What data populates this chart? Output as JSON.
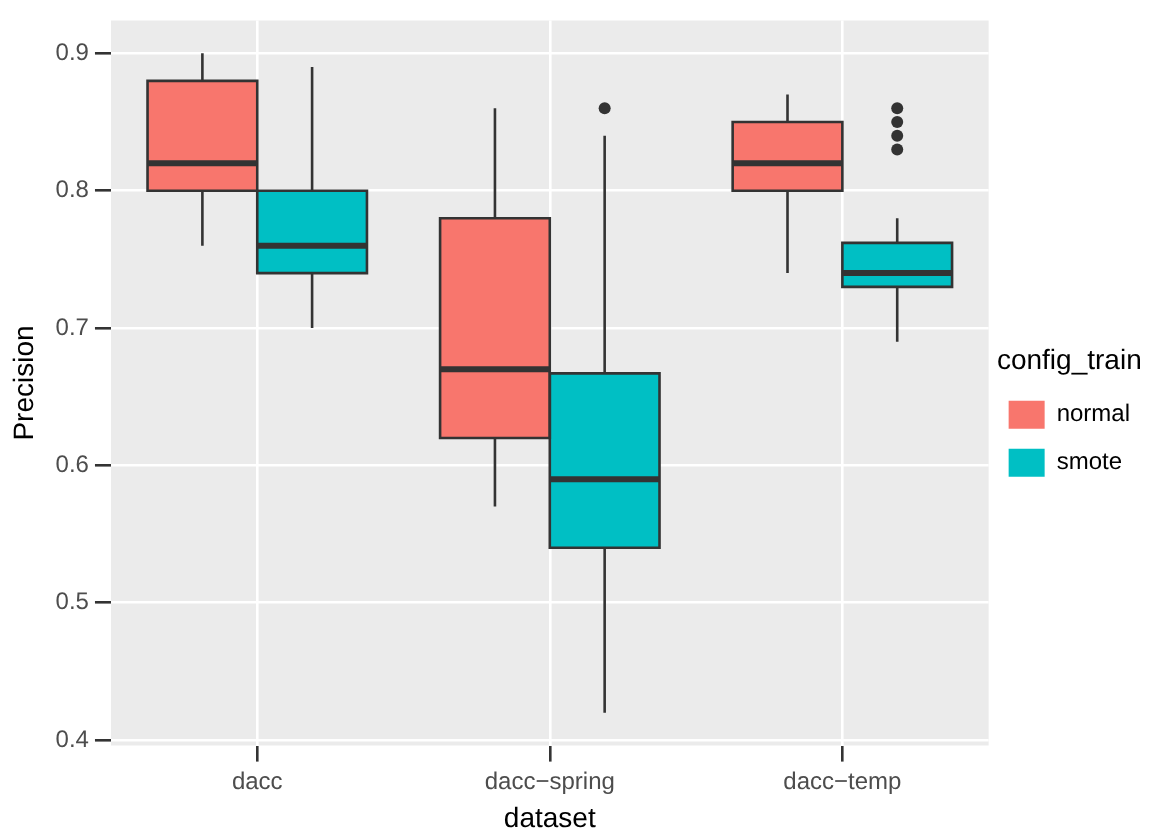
{
  "chart_data": {
    "type": "box",
    "xlabel": "dataset",
    "ylabel": "Precision",
    "legend_title": "config_train",
    "legend": "right",
    "categories": [
      "dacc",
      "dacc−spring",
      "dacc−temp"
    ],
    "ylim": [
      0.396,
      0.924
    ],
    "yticks": [
      0.4,
      0.5,
      0.6,
      0.7,
      0.8,
      0.9
    ],
    "grid": true,
    "series": [
      {
        "name": "normal",
        "color": "#f8766d",
        "boxes": [
          {
            "low": 0.76,
            "q1": 0.8,
            "median": 0.82,
            "q3": 0.88,
            "high": 0.9
          },
          {
            "low": 0.57,
            "q1": 0.62,
            "median": 0.67,
            "q3": 0.78,
            "high": 0.86
          },
          {
            "low": 0.74,
            "q1": 0.8,
            "median": 0.82,
            "q3": 0.85,
            "high": 0.87
          }
        ]
      },
      {
        "name": "smote",
        "color": "#00bfc4",
        "boxes": [
          {
            "low": 0.7,
            "q1": 0.74,
            "median": 0.76,
            "q3": 0.8,
            "high": 0.89
          },
          {
            "low": 0.42,
            "q1": 0.54,
            "median": 0.59,
            "q3": 0.667,
            "high": 0.84,
            "outliers": [
              0.86
            ]
          },
          {
            "low": 0.69,
            "q1": 0.73,
            "median": 0.74,
            "q3": 0.762,
            "high": 0.78,
            "outliers": [
              0.83,
              0.84,
              0.85,
              0.86
            ]
          }
        ]
      }
    ]
  }
}
